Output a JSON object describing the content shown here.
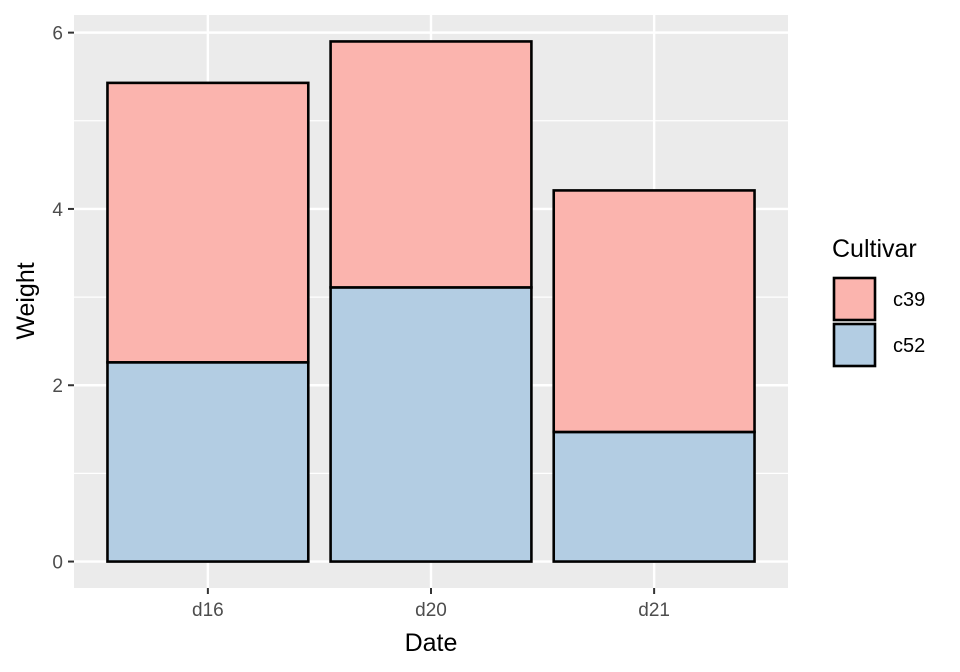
{
  "chart_data": {
    "type": "bar",
    "stacked": true,
    "title": "",
    "xlabel": "Date",
    "ylabel": "Weight",
    "categories": [
      "d16",
      "d20",
      "d21"
    ],
    "series": [
      {
        "name": "c52",
        "values": [
          2.26,
          3.11,
          1.47
        ],
        "color": "#b3cde3"
      },
      {
        "name": "c39",
        "values": [
          3.17,
          2.79,
          2.74
        ],
        "color": "#fbb4ae"
      }
    ],
    "ylim": [
      -0.3,
      6.2
    ],
    "yticks": [
      0,
      2,
      4,
      6
    ],
    "grid": true,
    "panel_background": "#ebebeb",
    "bar_outline": "#000000",
    "legend": {
      "title": "Cultivar",
      "position": "right",
      "entries": [
        "c39",
        "c52"
      ]
    }
  }
}
